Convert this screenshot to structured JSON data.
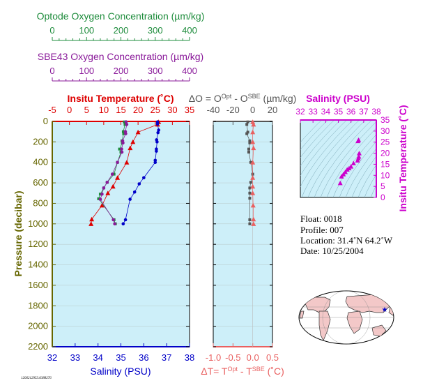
{
  "colors": {
    "green": "#1e8c3c",
    "purple": "#8a1a9a",
    "red": "#dd0000",
    "blue": "#0000c8",
    "olive": "#666600",
    "gray": "#555555",
    "pink": "#e96060",
    "magenta": "#cc00cc",
    "panel_bg": "#cdeff9"
  },
  "chart_data": [
    {
      "type": "axis",
      "label": "Optode Oxygen Concentration (µm/kg)",
      "range": [
        0,
        400
      ],
      "ticks": [
        0,
        100,
        200,
        300,
        400
      ]
    },
    {
      "type": "axis",
      "label": "SBE43 Oxygen Concentration (µm/kg)",
      "range": [
        0,
        400
      ],
      "ticks": [
        0,
        100,
        200,
        300,
        400
      ]
    },
    {
      "type": "line",
      "panel": "main",
      "top_axis": {
        "label": "Insitu Temperature (˚C)",
        "range": [
          -5,
          35
        ],
        "ticks": [
          -5,
          0,
          5,
          10,
          15,
          20,
          25,
          30,
          35
        ]
      },
      "bottom_axis": {
        "label": "Salinity (PSU)",
        "range": [
          32,
          38
        ],
        "ticks": [
          32,
          33,
          34,
          35,
          36,
          37,
          38
        ]
      },
      "y_axis": {
        "label": "Pressure (decibar)",
        "range": [
          0,
          2200
        ],
        "reversed": true,
        "ticks": [
          0,
          200,
          400,
          600,
          800,
          1000,
          1200,
          1400,
          1600,
          1800,
          2000,
          2200
        ]
      },
      "series": [
        {
          "key": "temperature",
          "x_axis": "top",
          "marker": "triangle",
          "points": [
            [
              26,
              5
            ],
            [
              25.7,
              30
            ],
            [
              20,
              105
            ],
            [
              18.5,
              200
            ],
            [
              17.7,
              260
            ],
            [
              16.7,
              400
            ],
            [
              14,
              550
            ],
            [
              12.7,
              635
            ],
            [
              11.2,
              700
            ],
            [
              9.5,
              820
            ],
            [
              6.5,
              955
            ],
            [
              6.3,
              1000
            ]
          ]
        },
        {
          "key": "salinity",
          "x_axis": "bottom",
          "marker": "circle",
          "points": [
            [
              36.6,
              5
            ],
            [
              36.6,
              25
            ],
            [
              36.65,
              85
            ],
            [
              36.62,
              110
            ],
            [
              36.56,
              180
            ],
            [
              36.58,
              200
            ],
            [
              36.55,
              270
            ],
            [
              36.55,
              290
            ],
            [
              36.5,
              380
            ],
            [
              36.5,
              400
            ],
            [
              36.0,
              550
            ],
            [
              35.8,
              610
            ],
            [
              35.6,
              690
            ],
            [
              35.4,
              760
            ],
            [
              35.2,
              960
            ],
            [
              35.1,
              1000
            ]
          ]
        },
        {
          "key": "optode_oxygen",
          "x_axis": "optode",
          "marker": "square",
          "points": [
            [
              210,
              5
            ],
            [
              212,
              30
            ],
            [
              207,
              100
            ],
            [
              208,
              120
            ],
            [
              203,
              190
            ],
            [
              204,
              210
            ],
            [
              196,
              270
            ],
            [
              200,
              300
            ],
            [
              190,
              400
            ],
            [
              180,
              515
            ],
            [
              160,
              595
            ],
            [
              150,
              650
            ],
            [
              140,
              710
            ],
            [
              135,
              755
            ],
            [
              180,
              960
            ],
            [
              184,
              1000
            ]
          ]
        },
        {
          "key": "sbe43_oxygen",
          "x_axis": "sbe43",
          "marker": "circle",
          "points": [
            [
              215,
              5
            ],
            [
              217,
              30
            ],
            [
              213,
              100
            ],
            [
              214,
              120
            ],
            [
              205,
              190
            ],
            [
              206,
              210
            ],
            [
              202,
              270
            ],
            [
              203,
              300
            ],
            [
              190,
              400
            ],
            [
              175,
              515
            ],
            [
              160,
              595
            ],
            [
              150,
              650
            ],
            [
              145,
              710
            ],
            [
              140,
              760
            ],
            [
              178,
              960
            ],
            [
              182,
              1000
            ]
          ]
        }
      ]
    },
    {
      "type": "scatter",
      "panel": "differences",
      "top_axis": {
        "label": "ΔO = O",
        "label_sup1": "Opt",
        "label_mid": " - O",
        "label_sup2": "SBE",
        "label_end": " (µm/kg)",
        "range": [
          -40,
          20
        ],
        "ticks": [
          -40,
          -20,
          0,
          20
        ]
      },
      "bottom_axis": {
        "label": "ΔT= T",
        "label_sup1": "Opt",
        "label_mid": " - T",
        "label_sup2": "SBE",
        "label_end": " (˚C)",
        "range": [
          -1.0,
          0.5
        ],
        "ticks": [
          -1.0,
          -0.5,
          0.0,
          0.5
        ]
      },
      "series": [
        {
          "key": "delta_oxygen",
          "x_axis": "top",
          "marker": "square",
          "points": [
            [
              -5,
              5
            ],
            [
              -6,
              30
            ],
            [
              -5,
              105
            ],
            [
              -6,
              120
            ],
            [
              -3,
              190
            ],
            [
              -3,
              210
            ],
            [
              -4,
              270
            ],
            [
              -4,
              300
            ],
            [
              -2,
              400
            ],
            [
              0,
              515
            ],
            [
              -2,
              595
            ],
            [
              -3,
              650
            ],
            [
              -3,
              700
            ],
            [
              -3,
              750
            ],
            [
              -3,
              960
            ],
            [
              -3,
              1000
            ]
          ]
        },
        {
          "key": "delta_temperature",
          "x_axis": "bottom",
          "marker": "triangle",
          "points": [
            [
              0.0,
              5
            ],
            [
              0.02,
              30
            ],
            [
              0.0,
              105
            ],
            [
              0.0,
              200
            ],
            [
              0.02,
              260
            ],
            [
              0.0,
              400
            ],
            [
              0.0,
              550
            ],
            [
              0.0,
              635
            ],
            [
              0.0,
              700
            ],
            [
              0.01,
              820
            ],
            [
              0.02,
              955
            ],
            [
              0.02,
              1000
            ]
          ]
        }
      ]
    },
    {
      "type": "scatter",
      "panel": "ts_diagram",
      "top_axis": {
        "label": "Salinity (PSU)",
        "range": [
          32,
          38
        ],
        "ticks": [
          32,
          33,
          34,
          35,
          36,
          37,
          38
        ]
      },
      "right_axis": {
        "label": "Insitu Temperature (˚C)",
        "range": [
          0,
          35
        ],
        "ticks": [
          0,
          5,
          10,
          15,
          20,
          25,
          30,
          35
        ]
      },
      "points": [
        [
          36.6,
          26
        ],
        [
          36.55,
          25.5
        ],
        [
          36.65,
          20
        ],
        [
          36.62,
          18.5
        ],
        [
          36.58,
          17.7
        ],
        [
          36.52,
          16.7
        ],
        [
          36.2,
          15.5
        ],
        [
          36.0,
          14.0
        ],
        [
          35.85,
          13.2
        ],
        [
          35.7,
          12.6
        ],
        [
          35.55,
          11.5
        ],
        [
          35.4,
          10.5
        ],
        [
          35.25,
          9.5
        ],
        [
          35.15,
          6.5
        ]
      ]
    }
  ],
  "info": {
    "float": "Float:  0018",
    "profile": "Profile:  007",
    "location": "Location:  31.4˚N  64.2˚W",
    "date": "Date:  10/25/2004"
  },
  "footer_id": "1206212953.0388276"
}
